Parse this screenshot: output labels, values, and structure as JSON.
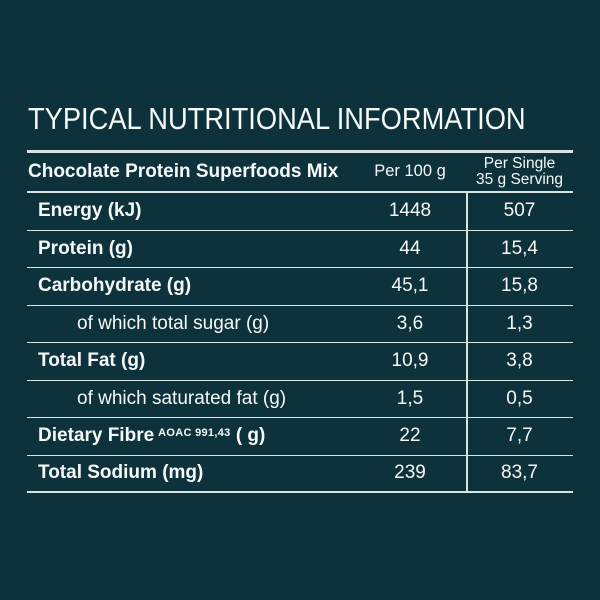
{
  "title": "TYPICAL NUTRITIONAL INFORMATION",
  "table": {
    "product": "Chocolate Protein Superfoods Mix",
    "col_per100_label": "Per 100 g",
    "col_serving_line1": "Per Single",
    "col_serving_line2": "35 g Serving",
    "rows": [
      {
        "label": "Energy (kJ)",
        "superscript": "",
        "label_suffix": "",
        "style": "bold",
        "per_100g": "1448",
        "per_serving": "507"
      },
      {
        "label": "Protein (g)",
        "superscript": "",
        "label_suffix": "",
        "style": "bold",
        "per_100g": "44",
        "per_serving": "15,4"
      },
      {
        "label": "Carbohydrate (g)",
        "superscript": "",
        "label_suffix": "",
        "style": "bold",
        "per_100g": "45,1",
        "per_serving": "15,8"
      },
      {
        "label": "of which total sugar (g)",
        "superscript": "",
        "label_suffix": "",
        "style": "sub",
        "per_100g": "3,6",
        "per_serving": "1,3"
      },
      {
        "label": "Total Fat (g)",
        "superscript": "",
        "label_suffix": "",
        "style": "bold",
        "per_100g": "10,9",
        "per_serving": "3,8"
      },
      {
        "label": "of which saturated fat (g)",
        "superscript": "",
        "label_suffix": "",
        "style": "sub",
        "per_100g": "1,5",
        "per_serving": "0,5"
      },
      {
        "label": "Dietary Fibre",
        "superscript": "AOAC 991,43",
        "label_suffix": " ( g)",
        "style": "bold",
        "per_100g": "22",
        "per_serving": "7,7"
      },
      {
        "label": "Total Sodium (mg)",
        "superscript": "",
        "label_suffix": "",
        "style": "bold",
        "per_100g": "239",
        "per_serving": "83,7"
      }
    ]
  },
  "colors": {
    "background": "#0e323c",
    "text": "#f5f9f8",
    "line": "#d8e3e3"
  }
}
